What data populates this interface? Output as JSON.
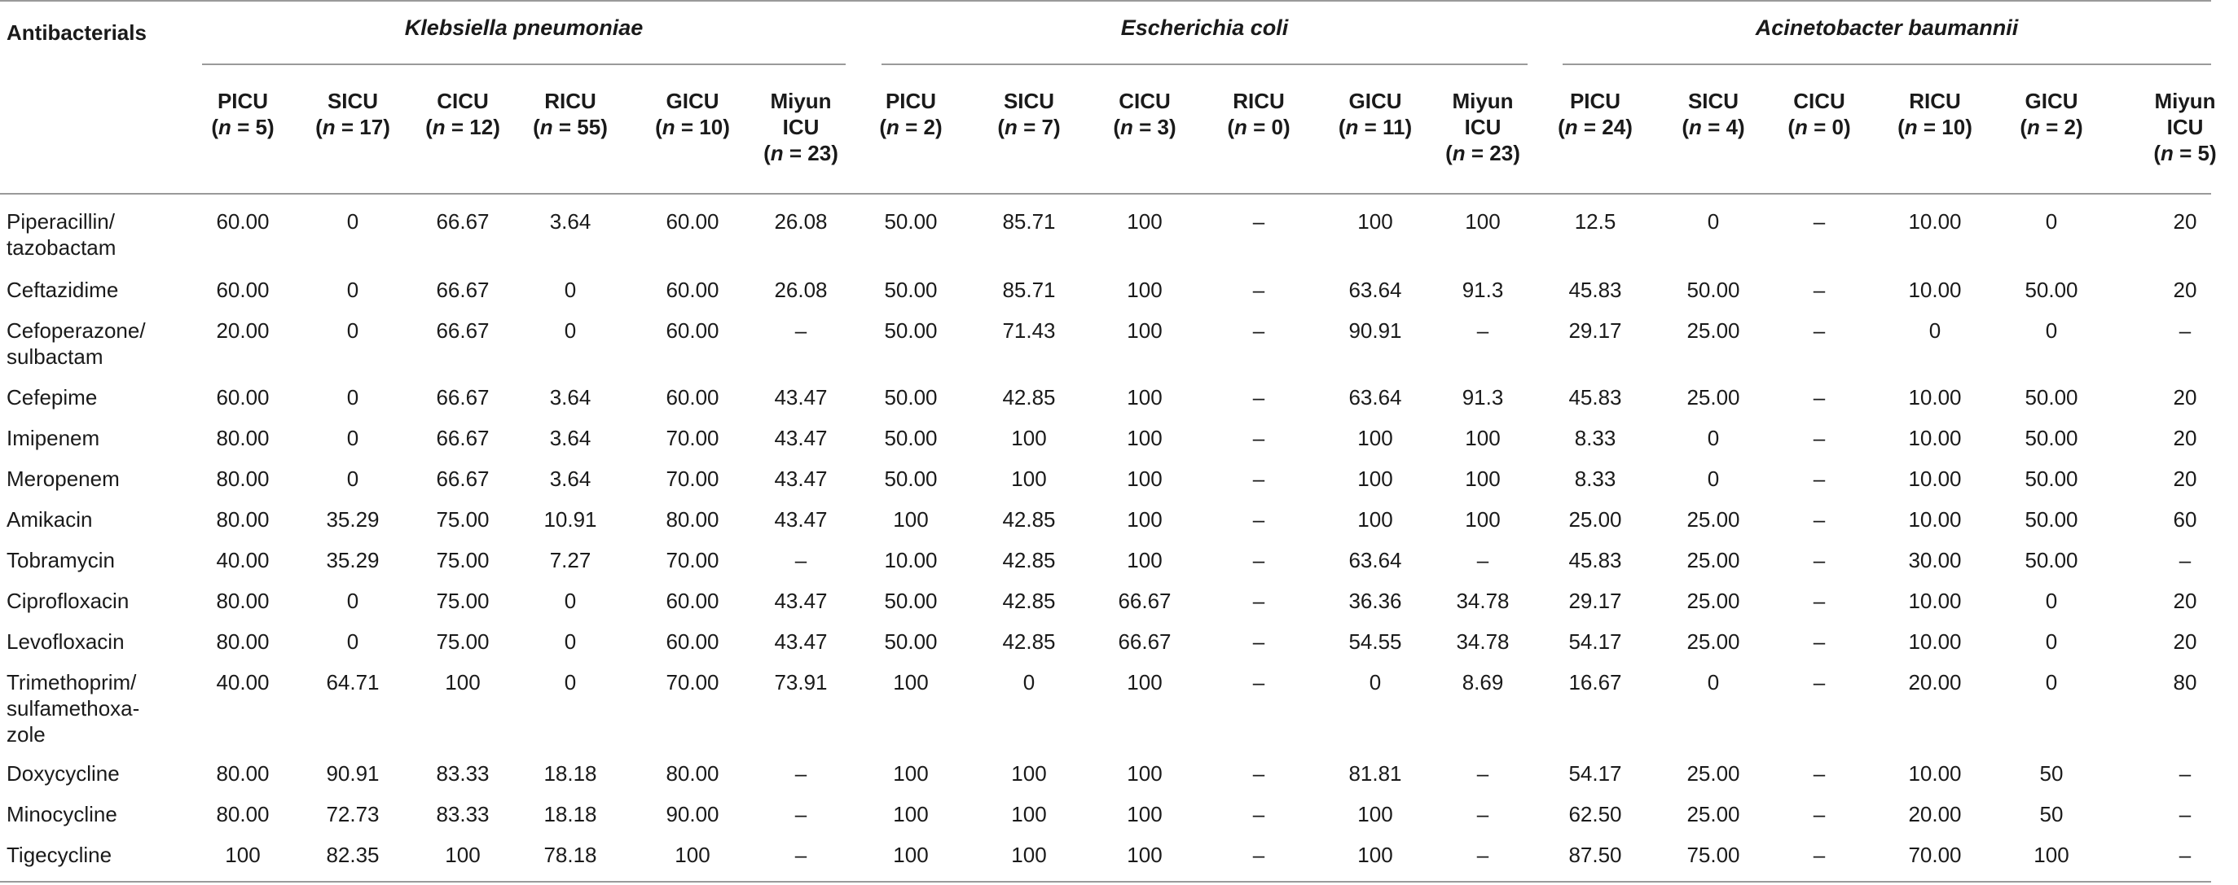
{
  "table": {
    "corner_label": "Antibacterials",
    "groups": [
      {
        "name": "Klebsiella pneumoniae"
      },
      {
        "name": "Escherichia coli"
      },
      {
        "name": "Acinetobacter baumannii"
      }
    ],
    "columns": [
      {
        "unit": "PICU",
        "n": "(n = 5)"
      },
      {
        "unit": "SICU",
        "n": "(n = 17)"
      },
      {
        "unit": "CICU",
        "n": "(n = 12)"
      },
      {
        "unit": "RICU",
        "n": "(n = 55)"
      },
      {
        "unit": "GICU",
        "n": "(n = 10)"
      },
      {
        "unit": "Miyun ICU",
        "n": "(n = 23)"
      },
      {
        "unit": "PICU",
        "n": "(n = 2)"
      },
      {
        "unit": "SICU",
        "n": "(n = 7)"
      },
      {
        "unit": "CICU",
        "n": "(n = 3)"
      },
      {
        "unit": "RICU",
        "n": "(n = 0)"
      },
      {
        "unit": "GICU",
        "n": "(n = 11)"
      },
      {
        "unit": "Miyun ICU",
        "n": "(n = 23)"
      },
      {
        "unit": "PICU",
        "n": "(n = 24)"
      },
      {
        "unit": "SICU",
        "n": "(n = 4)"
      },
      {
        "unit": "CICU",
        "n": "(n = 0)"
      },
      {
        "unit": "RICU",
        "n": "(n = 10)"
      },
      {
        "unit": "GICU",
        "n": "(n = 2)"
      },
      {
        "unit": "Miyun ICU",
        "n": "(n = 5)"
      }
    ],
    "rows": [
      {
        "name": "Piperacillin/ tazobactam",
        "values": [
          "60.00",
          "0",
          "66.67",
          "3.64",
          "60.00",
          "26.08",
          "50.00",
          "85.71",
          "100",
          "–",
          "100",
          "100",
          "12.5",
          "0",
          "–",
          "10.00",
          "0",
          "20"
        ]
      },
      {
        "name": "Ceftazidime",
        "values": [
          "60.00",
          "0",
          "66.67",
          "0",
          "60.00",
          "26.08",
          "50.00",
          "85.71",
          "100",
          "–",
          "63.64",
          "91.3",
          "45.83",
          "50.00",
          "–",
          "10.00",
          "50.00",
          "20"
        ]
      },
      {
        "name": "Cefoperazone/ sulbactam",
        "values": [
          "20.00",
          "0",
          "66.67",
          "0",
          "60.00",
          "–",
          "50.00",
          "71.43",
          "100",
          "–",
          "90.91",
          "–",
          "29.17",
          "25.00",
          "–",
          "0",
          "0",
          "–"
        ]
      },
      {
        "name": "Cefepime",
        "values": [
          "60.00",
          "0",
          "66.67",
          "3.64",
          "60.00",
          "43.47",
          "50.00",
          "42.85",
          "100",
          "–",
          "63.64",
          "91.3",
          "45.83",
          "25.00",
          "–",
          "10.00",
          "50.00",
          "20"
        ]
      },
      {
        "name": "Imipenem",
        "values": [
          "80.00",
          "0",
          "66.67",
          "3.64",
          "70.00",
          "43.47",
          "50.00",
          "100",
          "100",
          "–",
          "100",
          "100",
          "8.33",
          "0",
          "–",
          "10.00",
          "50.00",
          "20"
        ]
      },
      {
        "name": "Meropenem",
        "values": [
          "80.00",
          "0",
          "66.67",
          "3.64",
          "70.00",
          "43.47",
          "50.00",
          "100",
          "100",
          "–",
          "100",
          "100",
          "8.33",
          "0",
          "–",
          "10.00",
          "50.00",
          "20"
        ]
      },
      {
        "name": "Amikacin",
        "values": [
          "80.00",
          "35.29",
          "75.00",
          "10.91",
          "80.00",
          "43.47",
          "100",
          "42.85",
          "100",
          "–",
          "100",
          "100",
          "25.00",
          "25.00",
          "–",
          "10.00",
          "50.00",
          "60"
        ]
      },
      {
        "name": "Tobramycin",
        "values": [
          "40.00",
          "35.29",
          "75.00",
          "7.27",
          "70.00",
          "–",
          "10.00",
          "42.85",
          "100",
          "–",
          "63.64",
          "–",
          "45.83",
          "25.00",
          "–",
          "30.00",
          "50.00",
          "–"
        ]
      },
      {
        "name": "Ciprofloxacin",
        "values": [
          "80.00",
          "0",
          "75.00",
          "0",
          "60.00",
          "43.47",
          "50.00",
          "42.85",
          "66.67",
          "–",
          "36.36",
          "34.78",
          "29.17",
          "25.00",
          "–",
          "10.00",
          "0",
          "20"
        ]
      },
      {
        "name": "Levofloxacin",
        "values": [
          "80.00",
          "0",
          "75.00",
          "0",
          "60.00",
          "43.47",
          "50.00",
          "42.85",
          "66.67",
          "–",
          "54.55",
          "34.78",
          "54.17",
          "25.00",
          "–",
          "10.00",
          "0",
          "20"
        ]
      },
      {
        "name": "Trimethoprim/ sulfamethoxa- zole",
        "values": [
          "40.00",
          "64.71",
          "100",
          "0",
          "70.00",
          "73.91",
          "100",
          "0",
          "100",
          "–",
          "0",
          "8.69",
          "16.67",
          "0",
          "–",
          "20.00",
          "0",
          "80"
        ]
      },
      {
        "name": "Doxycycline",
        "values": [
          "80.00",
          "90.91",
          "83.33",
          "18.18",
          "80.00",
          "–",
          "100",
          "100",
          "100",
          "–",
          "81.81",
          "–",
          "54.17",
          "25.00",
          "–",
          "10.00",
          "50",
          "–"
        ]
      },
      {
        "name": "Minocycline",
        "values": [
          "80.00",
          "72.73",
          "83.33",
          "18.18",
          "90.00",
          "–",
          "100",
          "100",
          "100",
          "–",
          "100",
          "–",
          "62.50",
          "25.00",
          "–",
          "20.00",
          "50",
          "–"
        ]
      },
      {
        "name": "Tigecycline",
        "values": [
          "100",
          "82.35",
          "100",
          "78.18",
          "100",
          "–",
          "100",
          "100",
          "100",
          "–",
          "100",
          "–",
          "87.50",
          "75.00",
          "–",
          "70.00",
          "100",
          "–"
        ]
      }
    ]
  }
}
